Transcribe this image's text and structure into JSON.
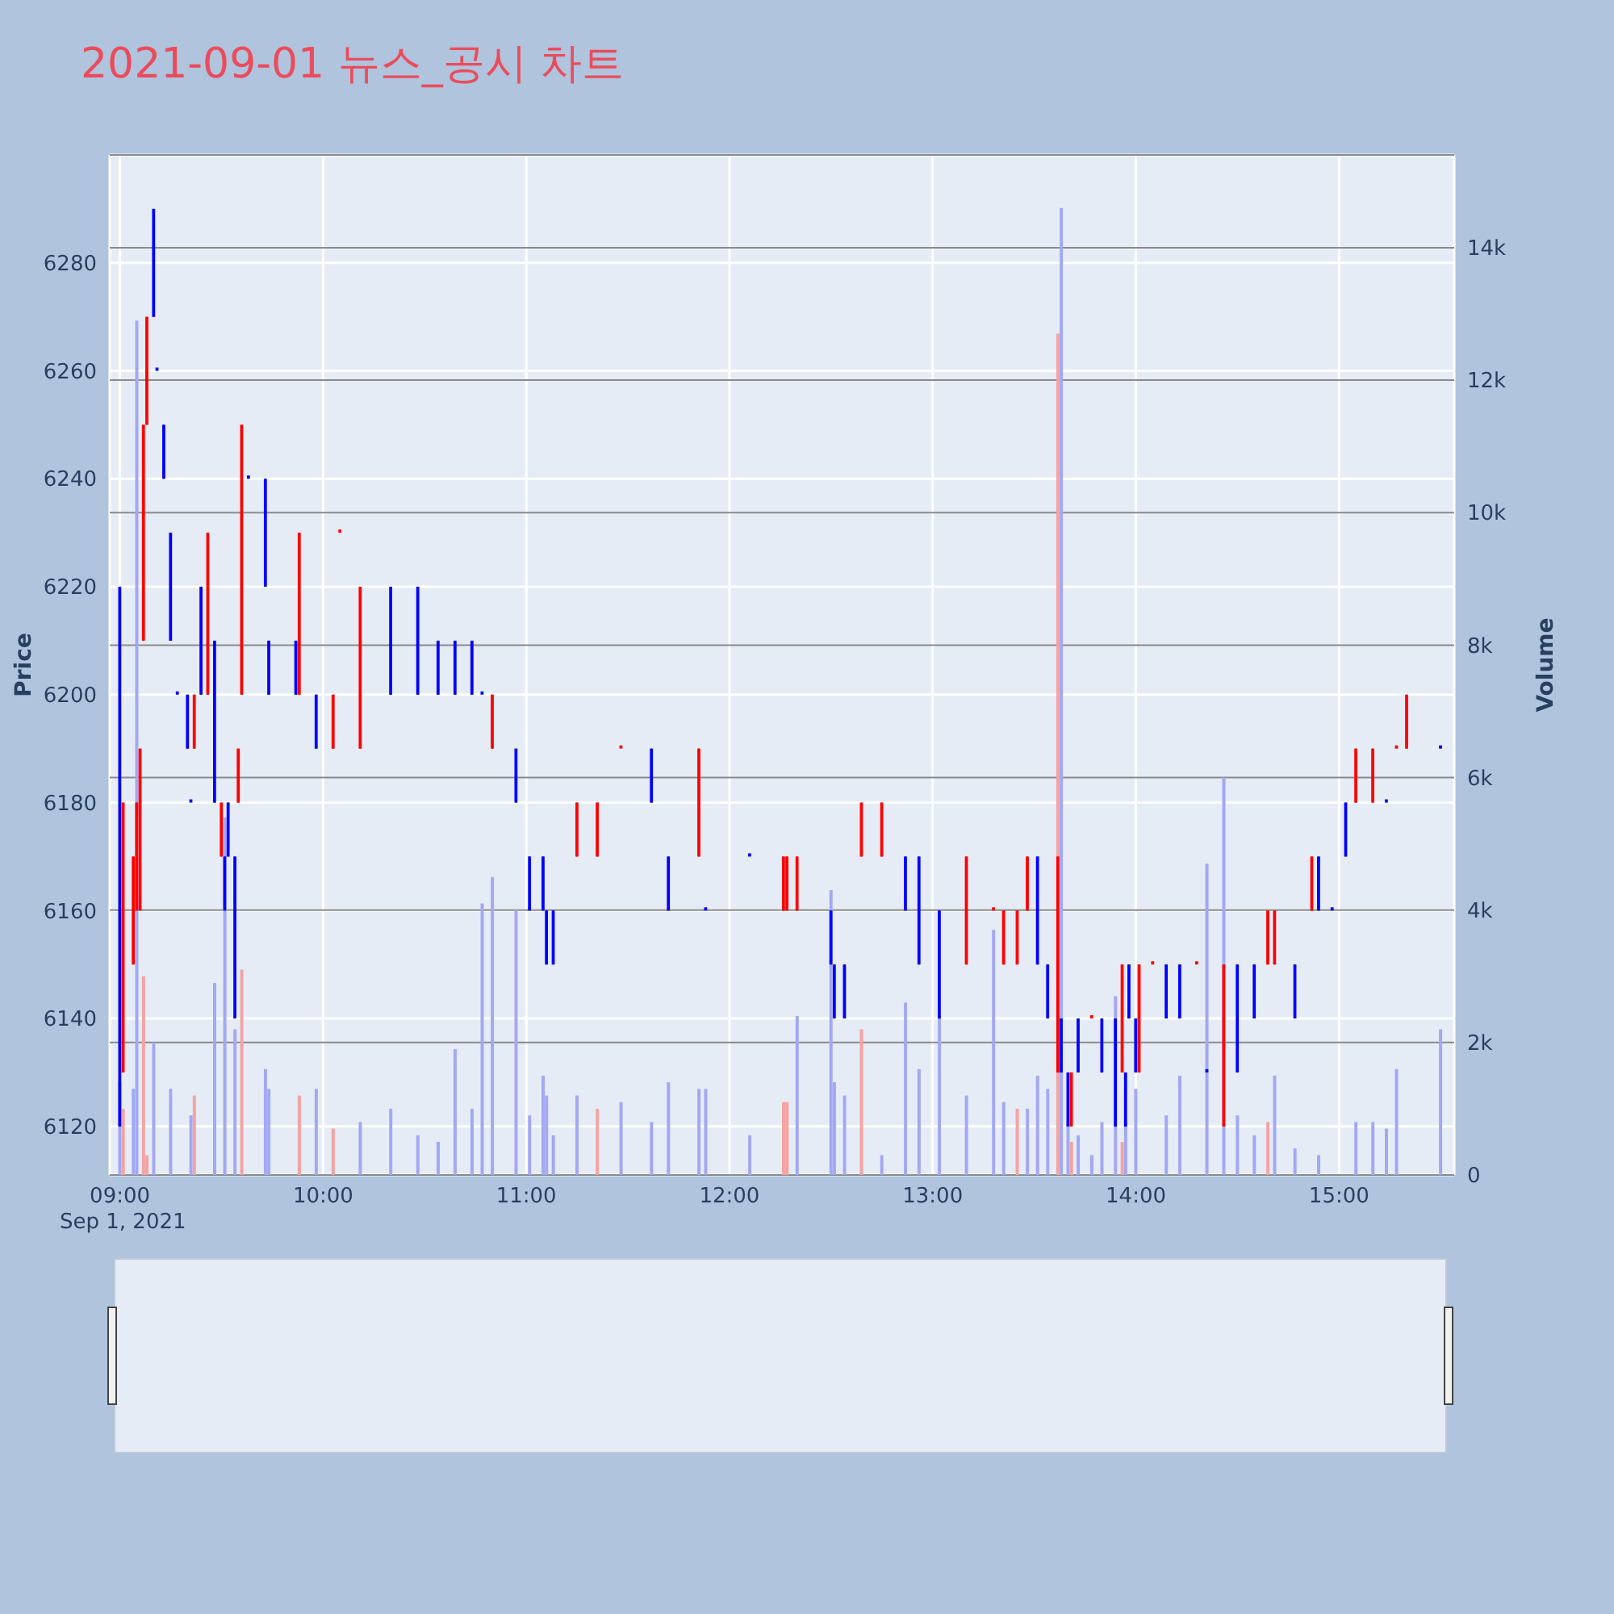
{
  "chart_data": {
    "type": "candlestick",
    "title": "2021-09-01 뉴스_공시 차트",
    "ylabel": "Price",
    "y2label": "Volume",
    "annotations": [
      "Sep 1, 2021"
    ],
    "x": [
      "2021-09-01T09:00",
      "2021-09-01T09:01",
      "2021-09-01T09:04",
      "2021-09-01T09:05",
      "2021-09-01T09:06",
      "2021-09-01T09:07",
      "2021-09-01T09:08",
      "2021-09-01T09:10",
      "2021-09-01T09:11",
      "2021-09-01T09:13",
      "2021-09-01T09:15",
      "2021-09-01T09:17",
      "2021-09-01T09:20",
      "2021-09-01T09:21",
      "2021-09-01T09:22",
      "2021-09-01T09:24",
      "2021-09-01T09:26",
      "2021-09-01T09:28",
      "2021-09-01T09:30",
      "2021-09-01T09:31",
      "2021-09-01T09:32",
      "2021-09-01T09:34",
      "2021-09-01T09:35",
      "2021-09-01T09:36",
      "2021-09-01T09:38",
      "2021-09-01T09:43",
      "2021-09-01T09:44",
      "2021-09-01T09:52",
      "2021-09-01T09:53",
      "2021-09-01T09:58",
      "2021-09-01T10:03",
      "2021-09-01T10:05",
      "2021-09-01T10:11",
      "2021-09-01T10:20",
      "2021-09-01T10:28",
      "2021-09-01T10:34",
      "2021-09-01T10:39",
      "2021-09-01T10:44",
      "2021-09-01T10:47",
      "2021-09-01T10:50",
      "2021-09-01T10:57",
      "2021-09-01T11:01",
      "2021-09-01T11:05",
      "2021-09-01T11:06",
      "2021-09-01T11:08",
      "2021-09-01T11:15",
      "2021-09-01T11:21",
      "2021-09-01T11:28",
      "2021-09-01T11:37",
      "2021-09-01T11:42",
      "2021-09-01T11:51",
      "2021-09-01T11:53",
      "2021-09-01T12:06",
      "2021-09-01T12:16",
      "2021-09-01T12:17",
      "2021-09-01T12:20",
      "2021-09-01T12:30",
      "2021-09-01T12:31",
      "2021-09-01T12:34",
      "2021-09-01T12:39",
      "2021-09-01T12:45",
      "2021-09-01T12:52",
      "2021-09-01T12:56",
      "2021-09-01T13:02",
      "2021-09-01T13:10",
      "2021-09-01T13:18",
      "2021-09-01T13:21",
      "2021-09-01T13:25",
      "2021-09-01T13:28",
      "2021-09-01T13:31",
      "2021-09-01T13:34",
      "2021-09-01T13:37",
      "2021-09-01T13:38",
      "2021-09-01T13:40",
      "2021-09-01T13:41",
      "2021-09-01T13:43",
      "2021-09-01T13:47",
      "2021-09-01T13:50",
      "2021-09-01T13:54",
      "2021-09-01T13:56",
      "2021-09-01T13:57",
      "2021-09-01T13:58",
      "2021-09-01T14:00",
      "2021-09-01T14:01",
      "2021-09-01T14:05",
      "2021-09-01T14:09",
      "2021-09-01T14:13",
      "2021-09-01T14:18",
      "2021-09-01T14:21",
      "2021-09-01T14:26",
      "2021-09-01T14:30",
      "2021-09-01T14:35",
      "2021-09-01T14:39",
      "2021-09-01T14:41",
      "2021-09-01T14:47",
      "2021-09-01T14:52",
      "2021-09-01T14:54",
      "2021-09-01T14:58",
      "2021-09-01T15:02",
      "2021-09-01T15:05",
      "2021-09-01T15:10",
      "2021-09-01T15:14",
      "2021-09-01T15:17",
      "2021-09-01T15:20",
      "2021-09-01T15:30"
    ],
    "xlim": [
      "2021-09-01T08:57",
      "2021-09-01T15:34"
    ],
    "xticks": [
      {
        "value": "2021-09-01T09:00",
        "label": "09:00"
      },
      {
        "value": "2021-09-01T10:00",
        "label": "10:00"
      },
      {
        "value": "2021-09-01T11:00",
        "label": "11:00"
      },
      {
        "value": "2021-09-01T12:00",
        "label": "12:00"
      },
      {
        "value": "2021-09-01T13:00",
        "label": "13:00"
      },
      {
        "value": "2021-09-01T14:00",
        "label": "14:00"
      },
      {
        "value": "2021-09-01T15:00",
        "label": "15:00"
      }
    ],
    "ylim": [
      6111,
      6300
    ],
    "yticks": [
      6120,
      6140,
      6160,
      6180,
      6200,
      6220,
      6240,
      6260,
      6280
    ],
    "y2lim": [
      0,
      15400
    ],
    "y2ticks": [
      0,
      {
        "value": 2000,
        "label": "2k"
      },
      {
        "value": 4000,
        "label": "4k"
      },
      {
        "value": 6000,
        "label": "6k"
      },
      {
        "value": 8000,
        "label": "8k"
      },
      {
        "value": 10000,
        "label": "10k"
      },
      {
        "value": 12000,
        "label": "12k"
      },
      {
        "value": 14000,
        "label": "14k"
      }
    ],
    "grid": true,
    "series": [
      {
        "type": "bar",
        "axis": "y2",
        "values": [
          1400,
          1000,
          1300,
          12900,
          null,
          3000,
          300,
          2000,
          null,
          null,
          1300,
          null,
          null,
          900,
          1200,
          null,
          null,
          2900,
          null,
          5400,
          null,
          2200,
          null,
          3100,
          null,
          1600,
          1300,
          null,
          1200,
          1300,
          700,
          null,
          800,
          1000,
          600,
          500,
          1900,
          1000,
          4100,
          4500,
          4000,
          900,
          1500,
          1200,
          600,
          1200,
          1000,
          1100,
          800,
          1400,
          1300,
          1300,
          600,
          1100,
          1100,
          2400,
          4300,
          1400,
          1200,
          2200,
          300,
          2600,
          1600,
          2400,
          1200,
          3700,
          1100,
          1000,
          1000,
          1500,
          1300,
          12700,
          14600,
          800,
          500,
          600,
          300,
          800,
          2700,
          500,
          800,
          null,
          1300,
          null,
          null,
          900,
          1500,
          null,
          4700,
          6000,
          900,
          600,
          800,
          1500,
          400,
          null,
          300,
          null,
          null,
          800,
          800,
          700,
          1600,
          null,
          2200
        ],
        "colors": [
          "#a3a8f4",
          "#f4a3a3",
          "#a3a8f4",
          "#a3a8f4",
          "#a3a8f4",
          "#f4a3a3",
          "#f4a3a3",
          "#a3a8f4",
          "#a3a8f4",
          "#a3a8f4",
          "#a3a8f4",
          "#a3a8f4",
          "#a3a8f4",
          "#a3a8f4",
          "#f4a3a3",
          "#a3a8f4",
          "#f4a3a3",
          "#a3a8f4",
          "#f4a3a3",
          "#a3a8f4",
          "#a3a8f4",
          "#a3a8f4",
          "#f4a3a3",
          "#f4a3a3",
          "#a3a8f4",
          "#a3a8f4",
          "#a3a8f4",
          "#a3a8f4",
          "#f4a3a3",
          "#a3a8f4",
          "#f4a3a3",
          "#f4a3a3",
          "#a3a8f4",
          "#a3a8f4",
          "#a3a8f4",
          "#a3a8f4",
          "#a3a8f4",
          "#a3a8f4",
          "#a3a8f4",
          "#a3a8f4",
          "#a3a8f4",
          "#a3a8f4",
          "#a3a8f4",
          "#a3a8f4",
          "#a3a8f4",
          "#a3a8f4",
          "#f4a3a3",
          "#a3a8f4",
          "#a3a8f4",
          "#a3a8f4",
          "#a3a8f4",
          "#a3a8f4",
          "#a3a8f4",
          "#f4a3a3",
          "#f4a3a3",
          "#a3a8f4",
          "#a3a8f4",
          "#a3a8f4",
          "#a3a8f4",
          "#f4a3a3",
          "#a3a8f4",
          "#a3a8f4",
          "#a3a8f4",
          "#a3a8f4",
          "#a3a8f4",
          "#a3a8f4",
          "#a3a8f4",
          "#f4a3a3",
          "#a3a8f4",
          "#a3a8f4",
          "#a3a8f4",
          "#f4a3a3",
          "#a3a8f4",
          "#a3a8f4",
          "#f4a3a3",
          "#a3a8f4",
          "#a3a8f4",
          "#a3a8f4",
          "#a3a8f4",
          "#f4a3a3",
          "#a3a8f4",
          "#a3a8f4",
          "#a3a8f4",
          "#f4a3a3",
          "#f4a3a3",
          "#a3a8f4",
          "#a3a8f4",
          "#f4a3a3",
          "#a3a8f4",
          "#a3a8f4",
          "#a3a8f4",
          "#a3a8f4",
          "#f4a3a3",
          "#a3a8f4",
          "#a3a8f4",
          "#f4a3a3",
          "#a3a8f4",
          "#a3a8f4",
          "#a3a8f4",
          "#a3a8f4",
          "#a3a8f4",
          "#a3a8f4",
          "#a3a8f4",
          "#f4a3a3",
          "#a3a8f4"
        ]
      },
      {
        "ohlc": [
          [
            6220,
            6220,
            6120,
            6120
          ],
          [
            6130,
            6180,
            6130,
            6180
          ],
          [
            6150,
            6170,
            6150,
            6170
          ],
          [
            6160,
            6180,
            6160,
            6180
          ],
          [
            6160,
            6190,
            6160,
            6190
          ],
          [
            6210,
            6250,
            6210,
            6250
          ],
          [
            6250,
            6270,
            6250,
            6270
          ],
          [
            6290,
            6290,
            6270,
            6270
          ],
          [
            6260,
            6260,
            6260,
            6260
          ],
          [
            6250,
            6250,
            6240,
            6240
          ],
          [
            6230,
            6230,
            6210,
            6210
          ],
          [
            6200,
            6200,
            6200,
            6200
          ],
          [
            6200,
            6200,
            6190,
            6190
          ],
          [
            6180,
            6180,
            6180,
            6180
          ],
          [
            6190,
            6200,
            6190,
            6200
          ],
          [
            6220,
            6220,
            6200,
            6200
          ],
          [
            6200,
            6230,
            6200,
            6230
          ],
          [
            6210,
            6210,
            6180,
            6180
          ],
          [
            6170,
            6180,
            6170,
            6180
          ],
          [
            6170,
            6170,
            6160,
            6160
          ],
          [
            6180,
            6180,
            6170,
            6170
          ],
          [
            6170,
            6170,
            6140,
            6140
          ],
          [
            6180,
            6190,
            6180,
            6190
          ],
          [
            6200,
            6250,
            6200,
            6250
          ],
          [
            6240,
            6240,
            6240,
            6240
          ],
          [
            6240,
            6240,
            6220,
            6220
          ],
          [
            6210,
            6210,
            6200,
            6200
          ],
          [
            6210,
            6210,
            6200,
            6200
          ],
          [
            6200,
            6230,
            6200,
            6230
          ],
          [
            6200,
            6200,
            6190,
            6190
          ],
          [
            6190,
            6200,
            6190,
            6200
          ],
          [
            6230,
            6230,
            6230,
            6230
          ],
          [
            6190,
            6220,
            6190,
            6220
          ],
          [
            6220,
            6220,
            6200,
            6200
          ],
          [
            6220,
            6220,
            6200,
            6200
          ],
          [
            6210,
            6210,
            6200,
            6200
          ],
          [
            6210,
            6210,
            6200,
            6200
          ],
          [
            6210,
            6210,
            6200,
            6200
          ],
          [
            6200,
            6200,
            6200,
            6200
          ],
          [
            6190,
            6200,
            6190,
            6200
          ],
          [
            6190,
            6190,
            6180,
            6180
          ],
          [
            6170,
            6170,
            6160,
            6160
          ],
          [
            6170,
            6170,
            6160,
            6160
          ],
          [
            6160,
            6160,
            6150,
            6150
          ],
          [
            6160,
            6160,
            6150,
            6150
          ],
          [
            6170,
            6180,
            6170,
            6180
          ],
          [
            6170,
            6180,
            6170,
            6180
          ],
          [
            6190,
            6190,
            6190,
            6190
          ],
          [
            6190,
            6190,
            6180,
            6180
          ],
          [
            6170,
            6170,
            6160,
            6160
          ],
          [
            6170,
            6190,
            6170,
            6190
          ],
          [
            6160,
            6160,
            6160,
            6160
          ],
          [
            6170,
            6170,
            6170,
            6170
          ],
          [
            6160,
            6170,
            6160,
            6170
          ],
          [
            6160,
            6170,
            6160,
            6170
          ],
          [
            6160,
            6170,
            6160,
            6170
          ],
          [
            6160,
            6160,
            6150,
            6150
          ],
          [
            6150,
            6150,
            6140,
            6140
          ],
          [
            6150,
            6150,
            6140,
            6140
          ],
          [
            6170,
            6180,
            6170,
            6180
          ],
          [
            6170,
            6180,
            6170,
            6180
          ],
          [
            6170,
            6170,
            6160,
            6160
          ],
          [
            6170,
            6170,
            6150,
            6150
          ],
          [
            6160,
            6160,
            6140,
            6140
          ],
          [
            6150,
            6170,
            6150,
            6170
          ],
          [
            6160,
            6160,
            6160,
            6160
          ],
          [
            6150,
            6160,
            6150,
            6160
          ],
          [
            6150,
            6160,
            6150,
            6160
          ],
          [
            6160,
            6170,
            6160,
            6170
          ],
          [
            6170,
            6170,
            6150,
            6150
          ],
          [
            6150,
            6150,
            6140,
            6140
          ],
          [
            6130,
            6170,
            6130,
            6170
          ],
          [
            6140,
            6140,
            6130,
            6130
          ],
          [
            6130,
            6130,
            6120,
            6120
          ],
          [
            6120,
            6130,
            6120,
            6130
          ],
          [
            6140,
            6140,
            6130,
            6130
          ],
          [
            6140,
            6140,
            6140,
            6140
          ],
          [
            6140,
            6140,
            6130,
            6130
          ],
          [
            6140,
            6140,
            6120,
            6120
          ],
          [
            6130,
            6150,
            6130,
            6150
          ],
          [
            6130,
            6130,
            6120,
            6120
          ],
          [
            6150,
            6150,
            6140,
            6140
          ],
          [
            6140,
            6140,
            6130,
            6130
          ],
          [
            6130,
            6150,
            6130,
            6150
          ],
          [
            6150,
            6150,
            6150,
            6150
          ],
          [
            6150,
            6150,
            6140,
            6140
          ],
          [
            6150,
            6150,
            6140,
            6140
          ],
          [
            6150,
            6150,
            6150,
            6150
          ],
          [
            6130,
            6130,
            6130,
            6130
          ],
          [
            6120,
            6150,
            6120,
            6150
          ],
          [
            6150,
            6150,
            6130,
            6130
          ],
          [
            6150,
            6150,
            6140,
            6140
          ],
          [
            6150,
            6160,
            6150,
            6160
          ],
          [
            6150,
            6160,
            6150,
            6160
          ],
          [
            6150,
            6150,
            6140,
            6140
          ],
          [
            6160,
            6170,
            6160,
            6170
          ],
          [
            6170,
            6170,
            6160,
            6160
          ],
          [
            6160,
            6160,
            6160,
            6160
          ],
          [
            6180,
            6180,
            6170,
            6170
          ],
          [
            6180,
            6190,
            6180,
            6190
          ],
          [
            6180,
            6190,
            6180,
            6190
          ],
          [
            6180,
            6180,
            6180,
            6180
          ],
          [
            6190,
            6190,
            6190,
            6190
          ],
          [
            6190,
            6200,
            6190,
            6200
          ],
          [
            6190,
            6190,
            6190,
            6190
          ]
        ],
        "colors": [
          "#0000ff",
          "#ff0000",
          "#ff0000",
          "#ff0000",
          "#ff0000",
          "#ff0000",
          "#ff0000",
          "#0000ff",
          "#0000ff",
          "#0000ff",
          "#0000ff",
          "#0000ff",
          "#0000ff",
          "#0000ff",
          "#ff0000",
          "#0000ff",
          "#ff0000",
          "#0000ff",
          "#ff0000",
          "#0000ff",
          "#0000ff",
          "#0000ff",
          "#ff0000",
          "#ff0000",
          "#0000ff",
          "#0000ff",
          "#0000ff",
          "#0000ff",
          "#ff0000",
          "#0000ff",
          "#ff0000",
          "#ff0000",
          "#ff0000",
          "#0000ff",
          "#0000ff",
          "#0000ff",
          "#0000ff",
          "#0000ff",
          "#0000ff",
          "#ff0000",
          "#0000ff",
          "#0000ff",
          "#0000ff",
          "#0000ff",
          "#0000ff",
          "#ff0000",
          "#ff0000",
          "#ff0000",
          "#0000ff",
          "#0000ff",
          "#ff0000",
          "#0000ff",
          "#0000ff",
          "#ff0000",
          "#ff0000",
          "#ff0000",
          "#0000ff",
          "#0000ff",
          "#0000ff",
          "#ff0000",
          "#ff0000",
          "#0000ff",
          "#0000ff",
          "#0000ff",
          "#ff0000",
          "#ff0000",
          "#ff0000",
          "#ff0000",
          "#ff0000",
          "#0000ff",
          "#0000ff",
          "#ff0000",
          "#0000ff",
          "#0000ff",
          "#ff0000",
          "#0000ff",
          "#ff0000",
          "#0000ff",
          "#0000ff",
          "#ff0000",
          "#0000ff",
          "#0000ff",
          "#0000ff",
          "#ff0000",
          "#ff0000",
          "#0000ff",
          "#0000ff",
          "#ff0000",
          "#0000ff",
          "#ff0000",
          "#0000ff",
          "#0000ff",
          "#ff0000",
          "#ff0000",
          "#0000ff",
          "#ff0000",
          "#0000ff",
          "#0000ff",
          "#0000ff",
          "#ff0000",
          "#ff0000",
          "#0000ff",
          "#ff0000",
          "#ff0000",
          "#0000ff"
        ]
      }
    ]
  }
}
